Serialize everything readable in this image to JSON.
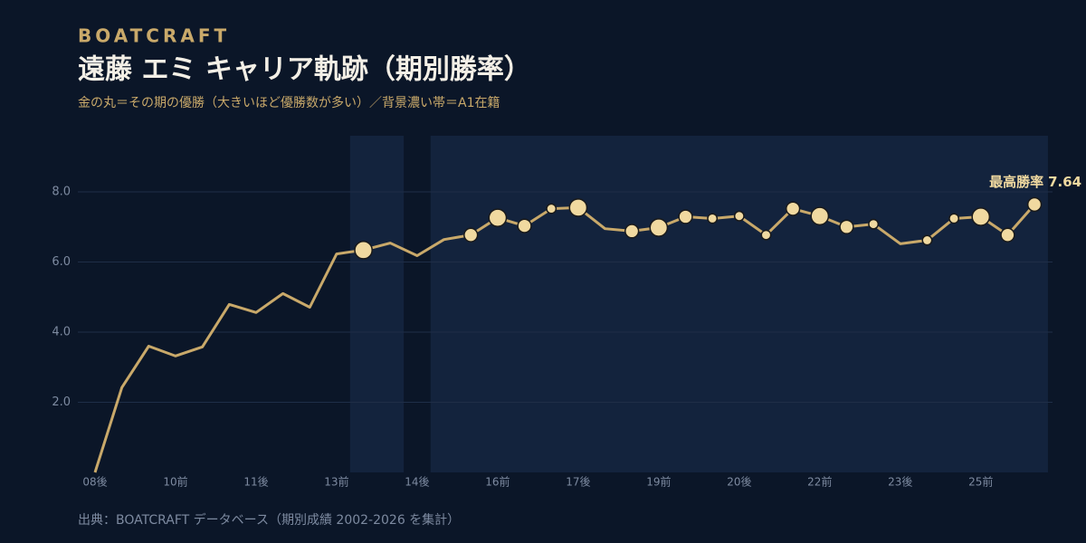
{
  "chart_data": {
    "type": "line",
    "brand": "BOATCRAFT",
    "title": "遠藤 エミ キャリア軌跡（期別勝率）",
    "subtitle": "金の丸＝その期の優勝（大きいほど優勝数が多い）／背景濃い帯＝A1在籍",
    "source": "出典：BOATCRAFT データベース（期別成績 2002-2026 を集計）",
    "annotation": "最高勝率",
    "categories": [
      "08後",
      null,
      null,
      "10前",
      null,
      null,
      "11後",
      null,
      null,
      "13前",
      null,
      null,
      "14後",
      null,
      null,
      "16前",
      null,
      null,
      "17後",
      null,
      null,
      "19前",
      null,
      null,
      "20後",
      null,
      null,
      "22前",
      null,
      null,
      "23後",
      null,
      null,
      "25前",
      null,
      null
    ],
    "a1": [
      false,
      false,
      false,
      false,
      false,
      false,
      false,
      false,
      false,
      false,
      true,
      true,
      false,
      true,
      true,
      true,
      true,
      true,
      true,
      true,
      true,
      true,
      true,
      true,
      true,
      true,
      true,
      true,
      true,
      true,
      true,
      true,
      true,
      true,
      true,
      true
    ],
    "series": [
      {
        "name": "勝率",
        "color": "#c9a96a",
        "marker_color": "#f0d9a0",
        "values": [
          0.0,
          2.42,
          3.6,
          3.32,
          3.58,
          4.79,
          4.56,
          5.1,
          4.71,
          6.23,
          6.34,
          6.54,
          6.18,
          6.64,
          6.77,
          7.26,
          7.03,
          7.52,
          7.55,
          6.95,
          6.88,
          6.98,
          7.29,
          7.24,
          7.31,
          6.77,
          7.52,
          7.31,
          7.0,
          7.08,
          6.52,
          6.62,
          7.24,
          7.29,
          6.77,
          7.64
        ],
        "wins": [
          null,
          null,
          null,
          null,
          null,
          null,
          null,
          null,
          null,
          null,
          3,
          null,
          null,
          null,
          2,
          3,
          2,
          1,
          3,
          null,
          2,
          3,
          2,
          1,
          1,
          1,
          2,
          3,
          2,
          1,
          null,
          1,
          1,
          3,
          2,
          2
        ]
      }
    ],
    "ylim": [
      0,
      9.6
    ],
    "yticks": [
      {
        "value": 2,
        "label": "2.0"
      },
      {
        "value": 4,
        "label": "4.0"
      },
      {
        "value": 6,
        "label": "6.0"
      },
      {
        "value": 8,
        "label": "8.0"
      }
    ],
    "grid": true
  }
}
